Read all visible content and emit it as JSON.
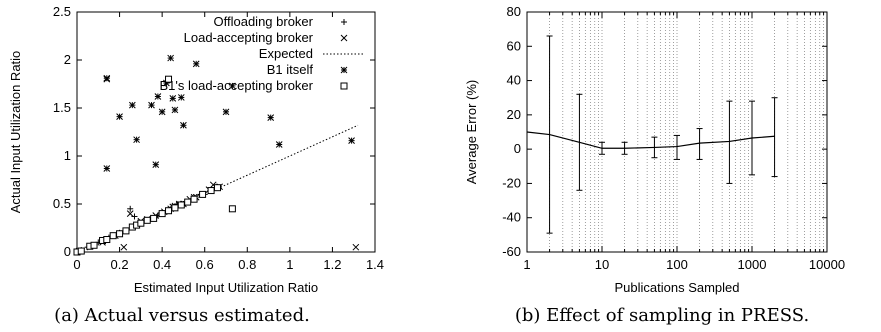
{
  "chart_data": [
    {
      "type": "scatter",
      "caption": "(a) Actual versus estimated.",
      "xlabel": "Estimated Input Utilization Ratio",
      "ylabel": "Actual Input Utilization Ratio",
      "xlim": [
        0,
        1.4
      ],
      "ylim": [
        0,
        2.5
      ],
      "xticks": [
        "0",
        "0.2",
        "0.4",
        "0.6",
        "0.8",
        "1",
        "1.2",
        "1.4"
      ],
      "yticks": [
        "0",
        "0.5",
        "1",
        "1.5",
        "2",
        "2.5"
      ],
      "grid": false,
      "legend_position": "top-right",
      "series": [
        {
          "name": "Offloading broker",
          "marker": "plus",
          "points": [
            [
              0.25,
              0.45
            ],
            [
              0.27,
              0.37
            ],
            [
              0.3,
              0.3
            ],
            [
              0.35,
              0.35
            ],
            [
              0.4,
              0.4
            ],
            [
              0.45,
              0.46
            ],
            [
              0.5,
              0.5
            ],
            [
              0.55,
              0.55
            ],
            [
              0.6,
              0.6
            ],
            [
              0.65,
              0.67
            ],
            [
              0.2,
              0.2
            ],
            [
              0.15,
              0.15
            ],
            [
              0.1,
              0.1
            ],
            [
              0.05,
              0.05
            ],
            [
              0.02,
              0.02
            ],
            [
              0.47,
              0.5
            ],
            [
              0.52,
              0.52
            ],
            [
              0.58,
              0.6
            ],
            [
              0.42,
              0.42
            ],
            [
              0.38,
              0.38
            ]
          ]
        },
        {
          "name": "Load-accepting broker",
          "marker": "x",
          "points": [
            [
              0.14,
              1.8
            ],
            [
              0.22,
              0.05
            ],
            [
              0.25,
              0.4
            ],
            [
              0.3,
              0.32
            ],
            [
              0.33,
              0.34
            ],
            [
              0.37,
              0.38
            ],
            [
              0.41,
              0.42
            ],
            [
              0.44,
              0.45
            ],
            [
              0.46,
              0.48
            ],
            [
              0.48,
              0.5
            ],
            [
              0.53,
              0.55
            ],
            [
              0.56,
              0.57
            ],
            [
              0.62,
              0.65
            ],
            [
              0.64,
              0.7
            ],
            [
              0.67,
              0.68
            ],
            [
              0.01,
              0.01
            ],
            [
              0.08,
              0.07
            ],
            [
              0.12,
              0.1
            ],
            [
              0.18,
              0.17
            ],
            [
              1.31,
              0.05
            ]
          ]
        },
        {
          "name": "Expected",
          "marker": "dotted-line",
          "points": [
            [
              0,
              0
            ],
            [
              1.32,
              1.32
            ]
          ]
        },
        {
          "name": "B1 itself",
          "marker": "star",
          "points": [
            [
              0.14,
              0.87
            ],
            [
              0.14,
              1.81
            ],
            [
              0.2,
              1.41
            ],
            [
              0.26,
              1.53
            ],
            [
              0.28,
              1.17
            ],
            [
              0.35,
              1.53
            ],
            [
              0.37,
              0.91
            ],
            [
              0.38,
              1.62
            ],
            [
              0.4,
              1.46
            ],
            [
              0.42,
              1.76
            ],
            [
              0.44,
              2.02
            ],
            [
              0.45,
              1.6
            ],
            [
              0.46,
              1.48
            ],
            [
              0.49,
              1.61
            ],
            [
              0.5,
              1.32
            ],
            [
              0.56,
              1.96
            ],
            [
              0.7,
              1.46
            ],
            [
              0.73,
              1.73
            ],
            [
              0.91,
              1.4
            ],
            [
              0.95,
              1.12
            ],
            [
              1.29,
              1.16
            ],
            [
              0.45,
              0.47
            ],
            [
              0.48,
              0.49
            ],
            [
              0.5,
              0.5
            ],
            [
              0.55,
              0.57
            ]
          ]
        },
        {
          "name": "B1's load-accepting broker",
          "marker": "square",
          "points": [
            [
              0,
              0
            ],
            [
              0.02,
              0.01
            ],
            [
              0.06,
              0.06
            ],
            [
              0.08,
              0.07
            ],
            [
              0.12,
              0.12
            ],
            [
              0.14,
              0.13
            ],
            [
              0.17,
              0.17
            ],
            [
              0.2,
              0.19
            ],
            [
              0.23,
              0.22
            ],
            [
              0.26,
              0.26
            ],
            [
              0.28,
              0.28
            ],
            [
              0.3,
              0.3
            ],
            [
              0.33,
              0.33
            ],
            [
              0.36,
              0.35
            ],
            [
              0.4,
              0.4
            ],
            [
              0.43,
              0.43
            ],
            [
              0.46,
              0.46
            ],
            [
              0.49,
              0.49
            ],
            [
              0.52,
              0.52
            ],
            [
              0.55,
              0.55
            ],
            [
              0.59,
              0.6
            ],
            [
              0.63,
              0.64
            ],
            [
              0.66,
              0.67
            ],
            [
              0.43,
              1.8
            ],
            [
              0.73,
              0.45
            ]
          ]
        }
      ]
    },
    {
      "type": "line",
      "caption": "(b) Effect of sampling in PRESS.",
      "xlabel": "Publications Sampled",
      "ylabel": "Average Error (%)",
      "x_scale": "log",
      "xlim": [
        1,
        10000
      ],
      "ylim": [
        -60,
        80
      ],
      "xticks": [
        "1",
        "10",
        "100",
        "1000",
        "10000"
      ],
      "yticks": [
        "-60",
        "-40",
        "-20",
        "0",
        "20",
        "40",
        "60",
        "80"
      ],
      "grid": "vertical-dotted",
      "series": [
        {
          "points": [
            {
              "x": 1,
              "y": 10
            },
            {
              "x": 2,
              "y": 8.5,
              "err_low": -49,
              "err_high": 66
            },
            {
              "x": 5,
              "y": 4,
              "err_low": -24,
              "err_high": 32
            },
            {
              "x": 10,
              "y": 0.5,
              "err_low": -3,
              "err_high": 4
            },
            {
              "x": 20,
              "y": 0.5,
              "err_low": -3,
              "err_high": 4
            },
            {
              "x": 50,
              "y": 1,
              "err_low": -5,
              "err_high": 7
            },
            {
              "x": 100,
              "y": 1.5,
              "err_low": -6,
              "err_high": 8
            },
            {
              "x": 200,
              "y": 3.5,
              "err_low": -6,
              "err_high": 12
            },
            {
              "x": 500,
              "y": 4.5,
              "err_low": -20,
              "err_high": 28
            },
            {
              "x": 1000,
              "y": 6.5,
              "err_low": -15,
              "err_high": 28
            },
            {
              "x": 2000,
              "y": 7.5,
              "err_low": -16,
              "err_high": 30
            }
          ]
        }
      ]
    }
  ]
}
